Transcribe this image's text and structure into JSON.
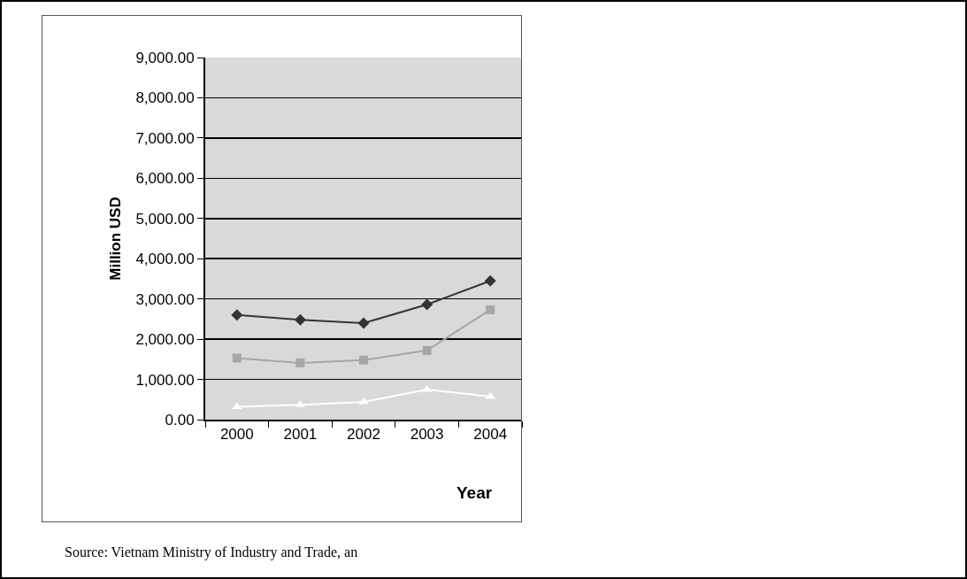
{
  "chart_data": {
    "type": "line",
    "categories": [
      "2000",
      "2001",
      "2002",
      "2003",
      "2004"
    ],
    "series": [
      {
        "color": "#333333",
        "marker": "diamond",
        "values": [
          2600,
          2480,
          2400,
          2860,
          3450
        ]
      },
      {
        "color": "#a6a6a6",
        "marker": "square",
        "values": [
          1530,
          1410,
          1480,
          1720,
          2730
        ]
      },
      {
        "color": "#ffffff",
        "marker": "triangle",
        "values": [
          320,
          370,
          440,
          750,
          570
        ]
      }
    ],
    "xlabel": "Year",
    "ylabel": "Million USD",
    "ylim": [
      0,
      9000
    ],
    "yticks": [
      {
        "value": 0,
        "label": "0.00"
      },
      {
        "value": 1000,
        "label": "1,000.00"
      },
      {
        "value": 2000,
        "label": "2,000.00"
      },
      {
        "value": 3000,
        "label": "3,000.00"
      },
      {
        "value": 4000,
        "label": "4,000.00"
      },
      {
        "value": 5000,
        "label": "5,000.00"
      },
      {
        "value": 6000,
        "label": "6,000.00"
      },
      {
        "value": 7000,
        "label": "7,000.00"
      },
      {
        "value": 8000,
        "label": "8,000.00"
      },
      {
        "value": 9000,
        "label": "9,000.00"
      }
    ],
    "grid": "y",
    "line_style": "solid",
    "annotations": [
      "Source: Vietnam Ministry of Industry and Trade, an"
    ]
  }
}
